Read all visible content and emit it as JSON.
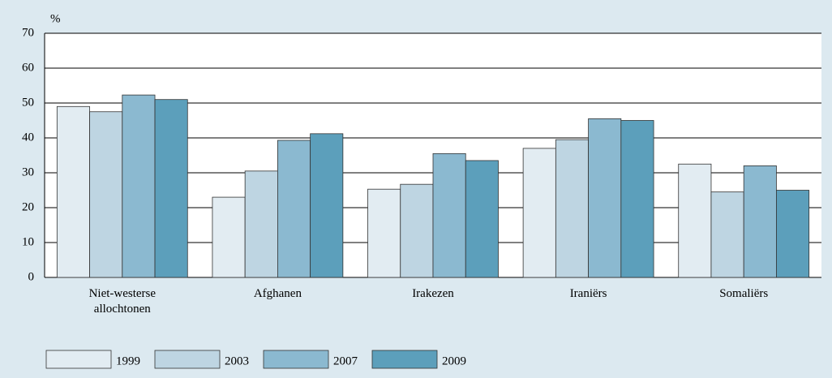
{
  "chart_data": {
    "type": "bar",
    "y_label": "%",
    "categories": [
      "Niet-westerse allochtonen",
      "Afghanen",
      "Irakezen",
      "Iraniërs",
      "Somaliërs"
    ],
    "series": [
      {
        "name": "1999",
        "color": "#e2ecf2",
        "values": [
          49,
          23,
          25.3,
          37,
          32.5
        ]
      },
      {
        "name": "2003",
        "color": "#bed5e2",
        "values": [
          47.5,
          30.5,
          26.7,
          39.5,
          24.5
        ]
      },
      {
        "name": "2007",
        "color": "#8bb9d0",
        "values": [
          52.3,
          39.3,
          35.5,
          45.5,
          32
        ]
      },
      {
        "name": "2009",
        "color": "#5c9fbb",
        "values": [
          51,
          41.2,
          33.5,
          45,
          25
        ]
      }
    ],
    "ylim": [
      0,
      70
    ],
    "yticks": [
      0,
      10,
      20,
      30,
      40,
      50,
      60,
      70
    ],
    "grid": true,
    "legend": "bottom"
  }
}
